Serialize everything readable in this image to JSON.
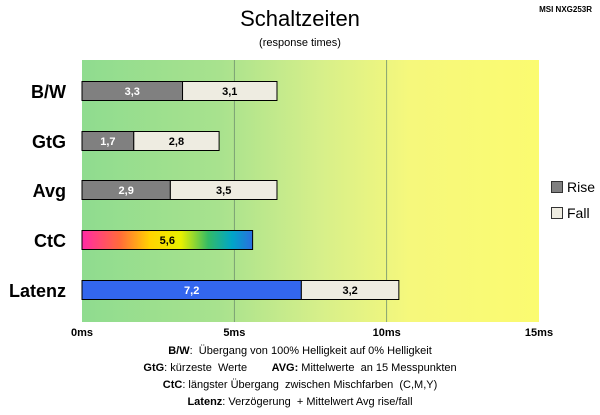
{
  "header": {
    "title": "Schaltzeiten",
    "subtitle": "(response times)",
    "model": "MSI NXG253R"
  },
  "legend": {
    "rise": "Rise",
    "fall": "Fall"
  },
  "notes": {
    "line1_key": "B/W",
    "line1_text": ":  Übergang von 100% Helligkeit auf 0% Helligkeit",
    "line2_key": "GtG",
    "line2_text": ": kürzeste  Werte",
    "line2_key2": "AVG:",
    "line2_text2": " Mittelwerte  an 15 Messpunkten",
    "line3_key": "CtC",
    "line3_text": ": längster Übergang  zwischen Mischfarben  (C,M,Y)",
    "line4_key": "Latenz",
    "line4_text": ": Verzögerung  + Mittelwert Avg rise/fall"
  },
  "colors": {
    "rise": "#808080",
    "fall": "#eeece1",
    "latenz_rise": "#3366ee",
    "background_left": "#8fdc8f",
    "background_mid": "#e8f38a",
    "background_right": "#fafa70"
  },
  "chart_data": {
    "type": "bar",
    "orientation": "horizontal",
    "stacked": true,
    "title": "Schaltzeiten",
    "subtitle": "(response times)",
    "categories": [
      "B/W",
      "GtG",
      "Avg",
      "CtC",
      "Latenz"
    ],
    "series": [
      {
        "name": "Rise",
        "values": [
          3.3,
          1.7,
          2.9,
          5.6,
          7.2
        ]
      },
      {
        "name": "Fall",
        "values": [
          3.1,
          2.8,
          3.5,
          null,
          3.2
        ]
      }
    ],
    "data_labels": [
      [
        "3,3",
        "3,1"
      ],
      [
        "1,7",
        "2,8"
      ],
      [
        "2,9",
        "3,5"
      ],
      [
        "5,6",
        ""
      ],
      [
        "7,2",
        "3,2"
      ]
    ],
    "xlim": [
      0,
      15
    ],
    "xticks": [
      0,
      5,
      10,
      15
    ],
    "xtick_labels": [
      "0ms",
      "5ms",
      "10ms",
      "15ms"
    ],
    "grid": true,
    "legend_position": "right"
  }
}
